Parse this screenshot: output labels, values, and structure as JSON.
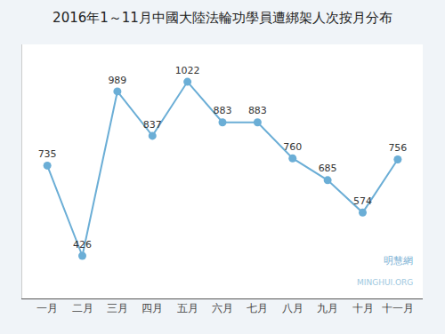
{
  "chart_data": {
    "type": "line",
    "title": "2016年1～11月中國大陸法輪功學員遭綁架人次按月分布",
    "categories": [
      "一月",
      "二月",
      "三月",
      "四月",
      "五月",
      "六月",
      "七月",
      "八月",
      "九月",
      "十月",
      "十一月"
    ],
    "values": [
      735,
      426,
      989,
      837,
      1022,
      883,
      883,
      760,
      685,
      574,
      756
    ],
    "color": "#6baed6",
    "marker": "circle",
    "ylim": [
      280,
      1150
    ],
    "grid": false,
    "data_labels": true,
    "tick_labels": "x",
    "annotations": [
      "明慧網",
      "MINGHUI.ORG"
    ]
  }
}
